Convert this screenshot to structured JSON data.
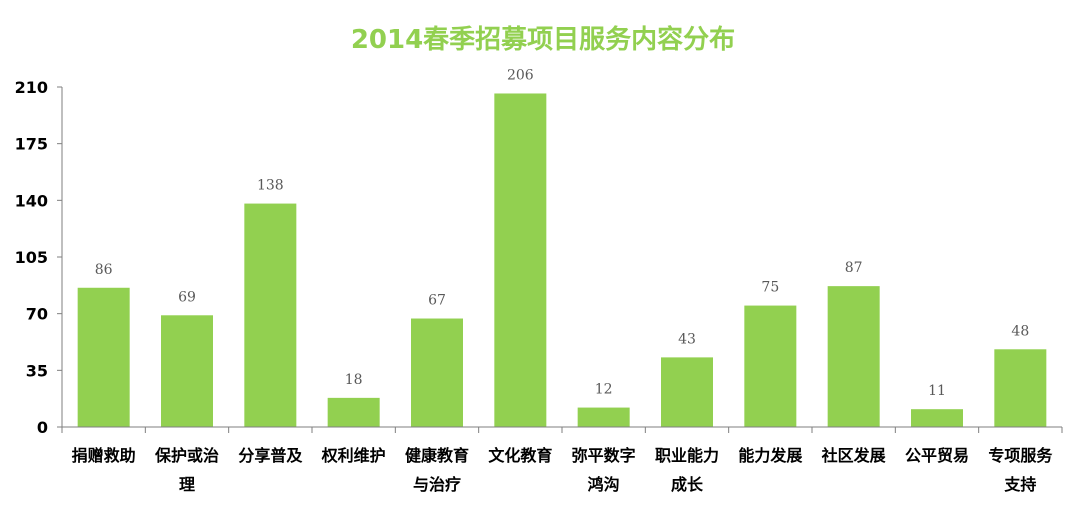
{
  "chart_data": {
    "type": "bar",
    "title": "2014春季招募项目服务内容分布",
    "categories": [
      "捐赠救助",
      "保护或治理",
      "分享普及",
      "权利维护",
      "健康教育与治疗",
      "文化教育",
      "弥平数字鸿沟",
      "职业能力成长",
      "能力发展",
      "社区发展",
      "公平贸易",
      "专项服务支持"
    ],
    "category_lines": [
      [
        "捐赠救助"
      ],
      [
        "保护或治",
        "理"
      ],
      [
        "分享普及"
      ],
      [
        "权利维护"
      ],
      [
        "健康教育",
        "与治疗"
      ],
      [
        "文化教育"
      ],
      [
        "弥平数字",
        "鸿沟"
      ],
      [
        "职业能力",
        "成长"
      ],
      [
        "能力发展"
      ],
      [
        "社区发展"
      ],
      [
        "公平贸易"
      ],
      [
        "专项服务",
        "支持"
      ]
    ],
    "values": [
      86,
      69,
      138,
      18,
      67,
      206,
      12,
      43,
      75,
      87,
      11,
      48
    ],
    "xlabel": "",
    "ylabel": "",
    "ylim": [
      0,
      210
    ],
    "yticks": [
      0,
      35,
      70,
      105,
      140,
      175,
      210
    ],
    "grid": false,
    "colors": {
      "bar": "#92d050",
      "title": "#92d050",
      "axis": "#7f7f7f",
      "tick_label": "#000000",
      "data_label": "#595959"
    }
  }
}
